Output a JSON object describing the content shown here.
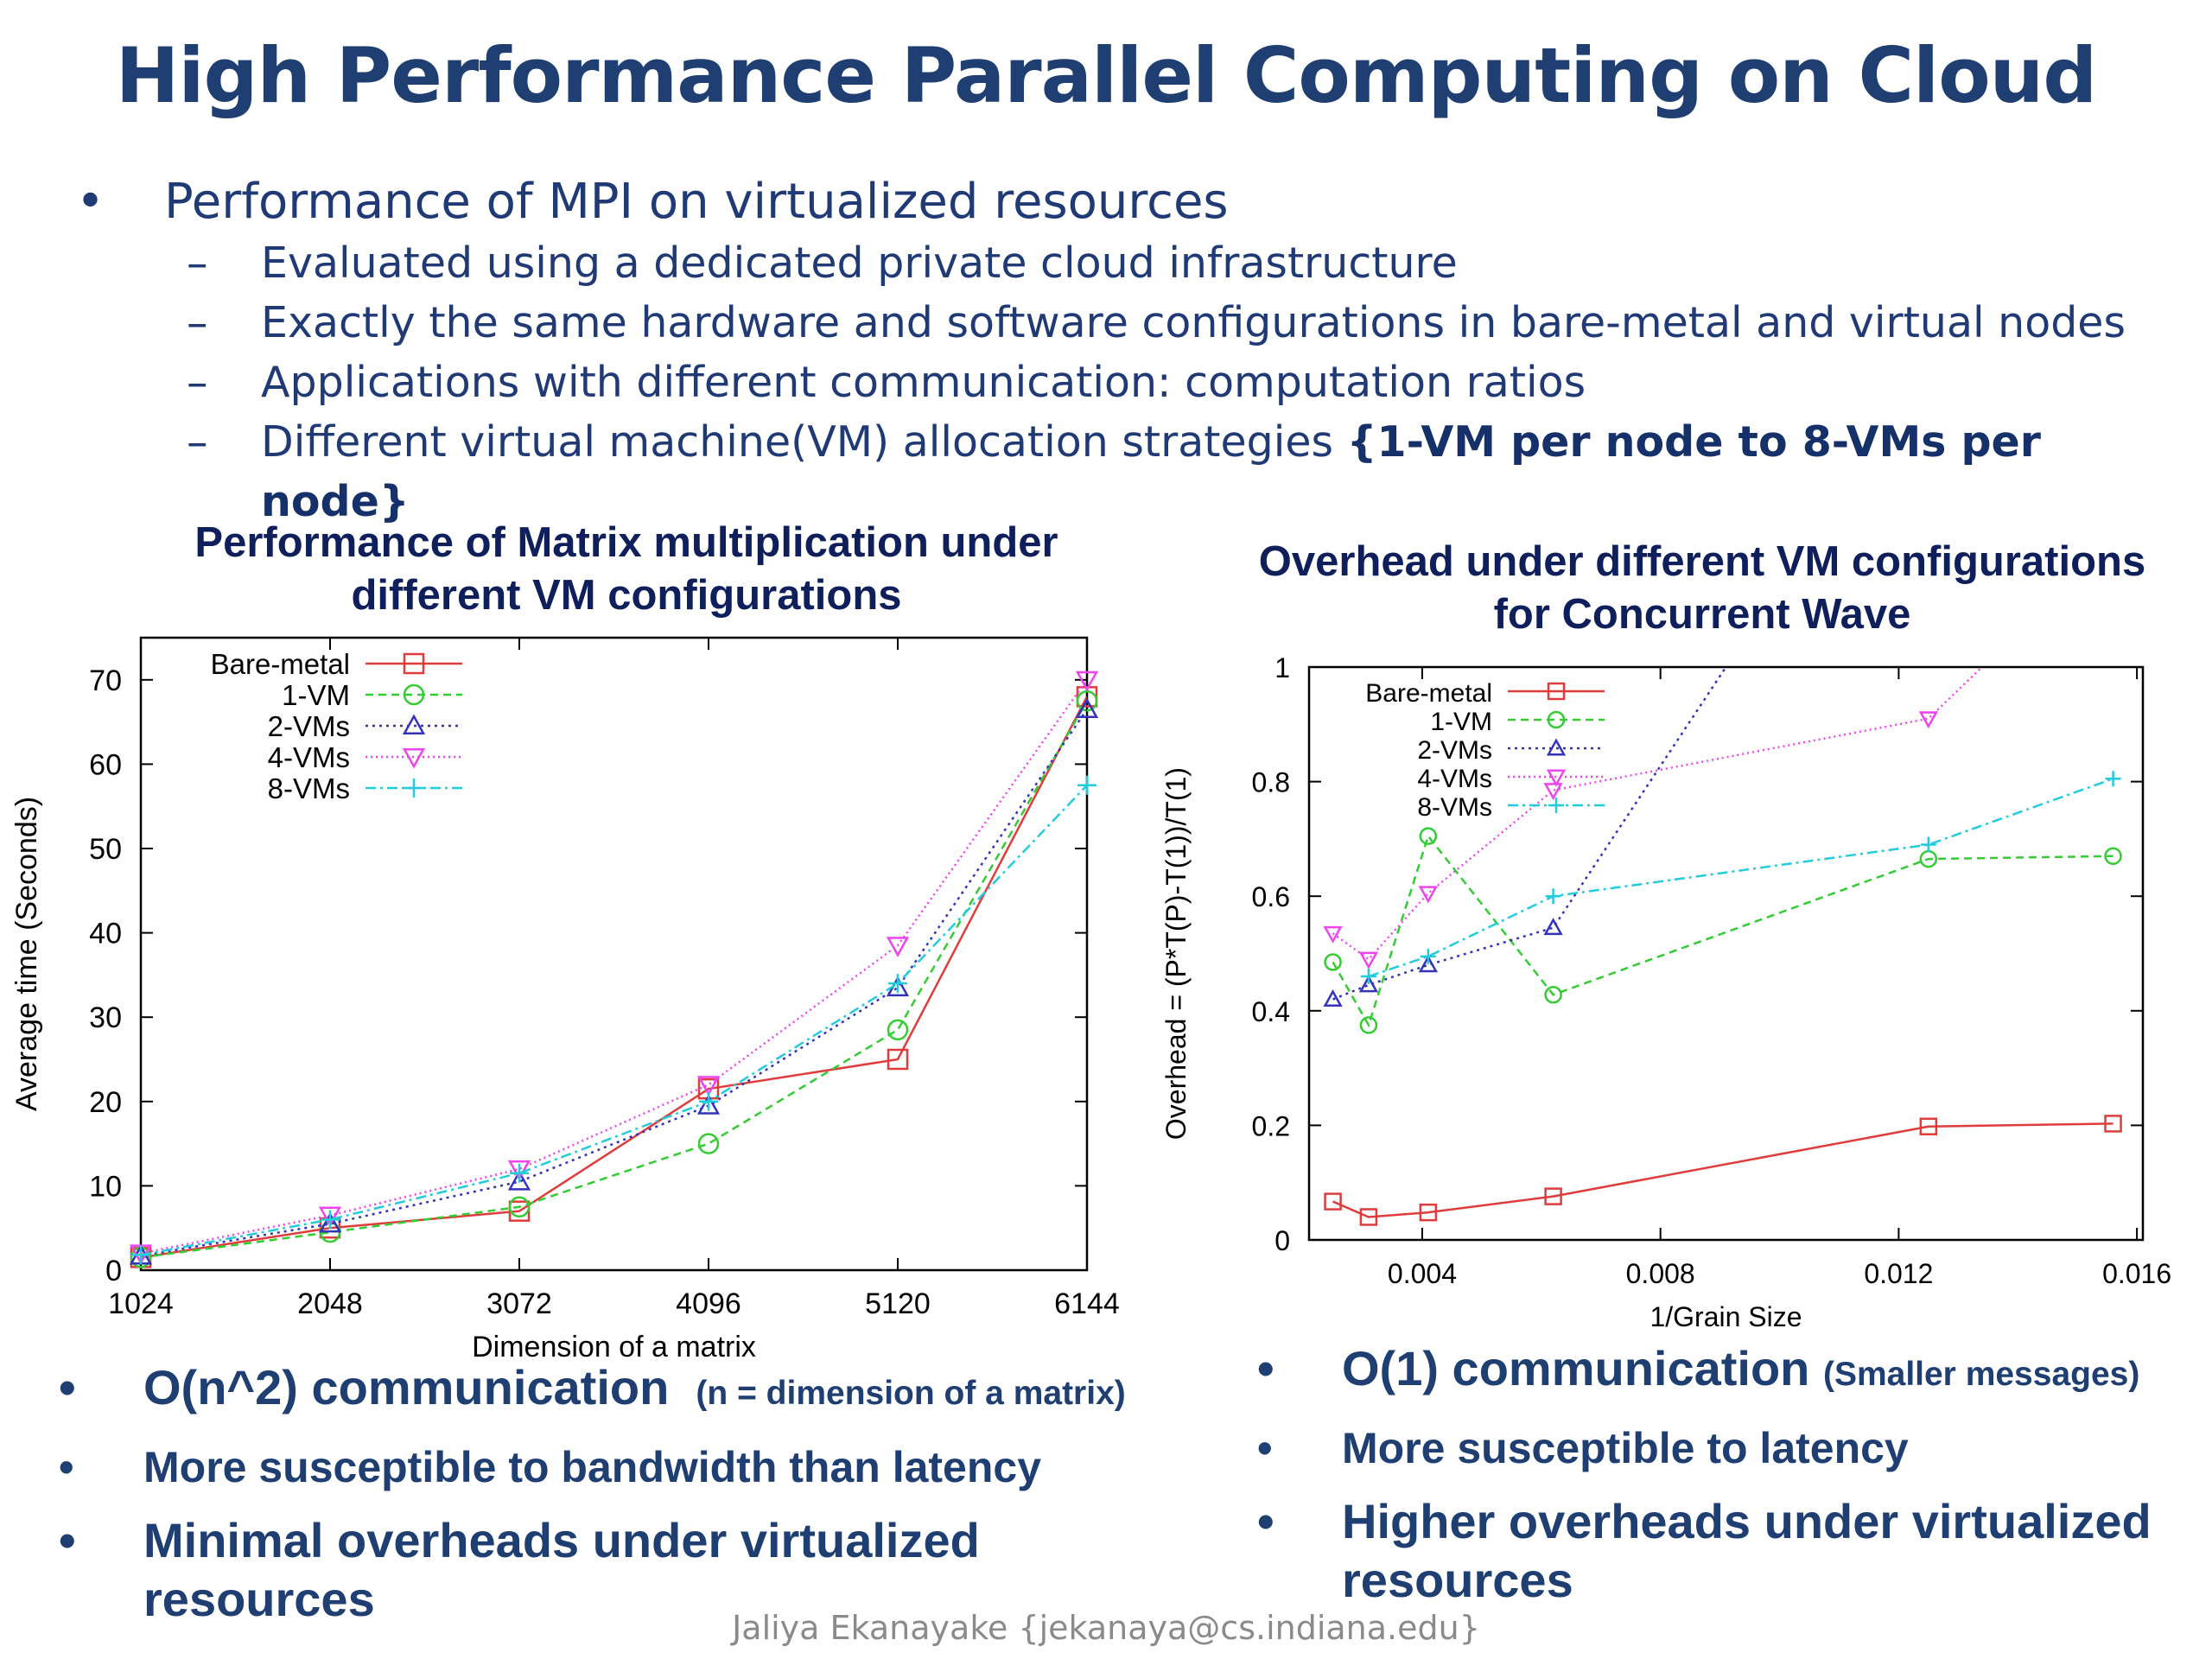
{
  "title": "High Performance Parallel Computing on Cloud",
  "main_bullet": "Performance of MPI on virtualized resources",
  "bullet_symbol": "•",
  "dash_symbol": "–",
  "sub_bullets": [
    {
      "text": "Evaluated using a dedicated private cloud infrastructure",
      "bold": ""
    },
    {
      "text": "Exactly the same hardware and software configurations in bare-metal and virtual nodes",
      "bold": ""
    },
    {
      "text": "Applications with different communication: computation ratios",
      "bold": ""
    },
    {
      "text": "Different virtual machine(VM) allocation strategies ",
      "bold": "{1-VM per node to 8-VMs per node}"
    }
  ],
  "chart_data": [
    {
      "type": "line",
      "title": "Performance of Matrix multiplication under different VM configurations",
      "xlabel": "Dimension of a matrix",
      "ylabel": "Average time (Seconds)",
      "x": [
        1024,
        2048,
        3072,
        4096,
        5120,
        6144
      ],
      "xticks": [
        "1024",
        "2048",
        "3072",
        "4096",
        "5120",
        "6144"
      ],
      "yticks": [
        "0",
        "10",
        "20",
        "30",
        "40",
        "50",
        "60",
        "70"
      ],
      "xlim": [
        1024,
        6144
      ],
      "ylim": [
        0,
        75
      ],
      "legend_position": "top-left",
      "series": [
        {
          "name": "Bare-metal",
          "color": "#e03c3c",
          "dash": "",
          "marker": "square",
          "values": [
            1.5,
            5,
            7,
            21.5,
            25,
            68
          ]
        },
        {
          "name": "1-VM",
          "color": "#33cc33",
          "dash": "9,6",
          "marker": "circle",
          "values": [
            1.5,
            4.5,
            7.5,
            15,
            28.5,
            67.5
          ]
        },
        {
          "name": "2-VMs",
          "color": "#3333bb",
          "dash": "3,5",
          "marker": "triangle",
          "values": [
            1.7,
            5.5,
            10.5,
            19.5,
            33.5,
            66.5
          ]
        },
        {
          "name": "4-VMs",
          "color": "#ee44ee",
          "dash": "2,4",
          "marker": "triangle-down",
          "values": [
            2,
            6.5,
            12,
            22,
            38.5,
            70
          ]
        },
        {
          "name": "8-VMs",
          "color": "#22ccdd",
          "dash": "12,5,3,5",
          "marker": "plus",
          "values": [
            1.8,
            6,
            11.5,
            20,
            34,
            57.5
          ]
        }
      ]
    },
    {
      "type": "line",
      "title": "Overhead under different VM configurations for Concurrent Wave",
      "xlabel": "1/Grain Size",
      "ylabel": "Overhead = (P*T(P)-T(1))/T(1)",
      "xticks": [
        "0.004",
        "0.008",
        "0.012",
        "0.016"
      ],
      "yticks": [
        "0",
        "0.2",
        "0.4",
        "0.6",
        "0.8",
        "1"
      ],
      "xlim": [
        0.0021,
        0.0161
      ],
      "ylim": [
        0,
        1
      ],
      "legend_position": "top-left",
      "series": [
        {
          "name": "Bare-metal",
          "color": "#e03c3c",
          "dash": "",
          "marker": "square",
          "x": [
            0.0025,
            0.0031,
            0.0041,
            0.0062,
            0.0125,
            0.0156
          ],
          "values": [
            0.067,
            0.04,
            0.048,
            0.076,
            0.198,
            0.203
          ]
        },
        {
          "name": "1-VM",
          "color": "#33cc33",
          "dash": "9,6",
          "marker": "circle",
          "x": [
            0.0025,
            0.0031,
            0.0041,
            0.0062,
            0.0125,
            0.0156
          ],
          "values": [
            0.485,
            0.375,
            0.705,
            0.428,
            0.665,
            0.67
          ]
        },
        {
          "name": "2-VMs",
          "color": "#3333bb",
          "dash": "3,5",
          "marker": "triangle",
          "x": [
            0.0025,
            0.0031,
            0.0041,
            0.0062,
            0.0091
          ],
          "values": [
            0.42,
            0.445,
            0.48,
            0.545,
            1.0
          ]
        },
        {
          "name": "4-VMs",
          "color": "#ee44ee",
          "dash": "2,4",
          "marker": "triangle-down",
          "x": [
            0.0025,
            0.0031,
            0.0041,
            0.0062,
            0.0125,
            0.0134
          ],
          "values": [
            0.535,
            0.49,
            0.605,
            0.785,
            0.91,
            1.0
          ]
        },
        {
          "name": "8-VMs",
          "color": "#22ccdd",
          "dash": "12,5,3,5",
          "marker": "plus",
          "x": [
            0.0031,
            0.0041,
            0.0062,
            0.0125,
            0.0156
          ],
          "values": [
            0.46,
            0.495,
            0.6,
            0.69,
            0.805
          ]
        }
      ]
    }
  ],
  "left_points": [
    {
      "main": "O(n^2) communication",
      "note": "(n = dimension of a matrix)"
    },
    {
      "main": "More susceptible to bandwidth than latency",
      "note": ""
    },
    {
      "main": "Minimal overheads under virtualized resources",
      "note": ""
    }
  ],
  "right_points": [
    {
      "main": "O(1) communication",
      "note": "(Smaller messages)"
    },
    {
      "main": "More susceptible to latency",
      "note": ""
    },
    {
      "main": "Higher overheads under virtualized resources",
      "note": ""
    }
  ],
  "footer": "Jaliya Ekanayake {jekanaya@cs.indiana.edu}"
}
